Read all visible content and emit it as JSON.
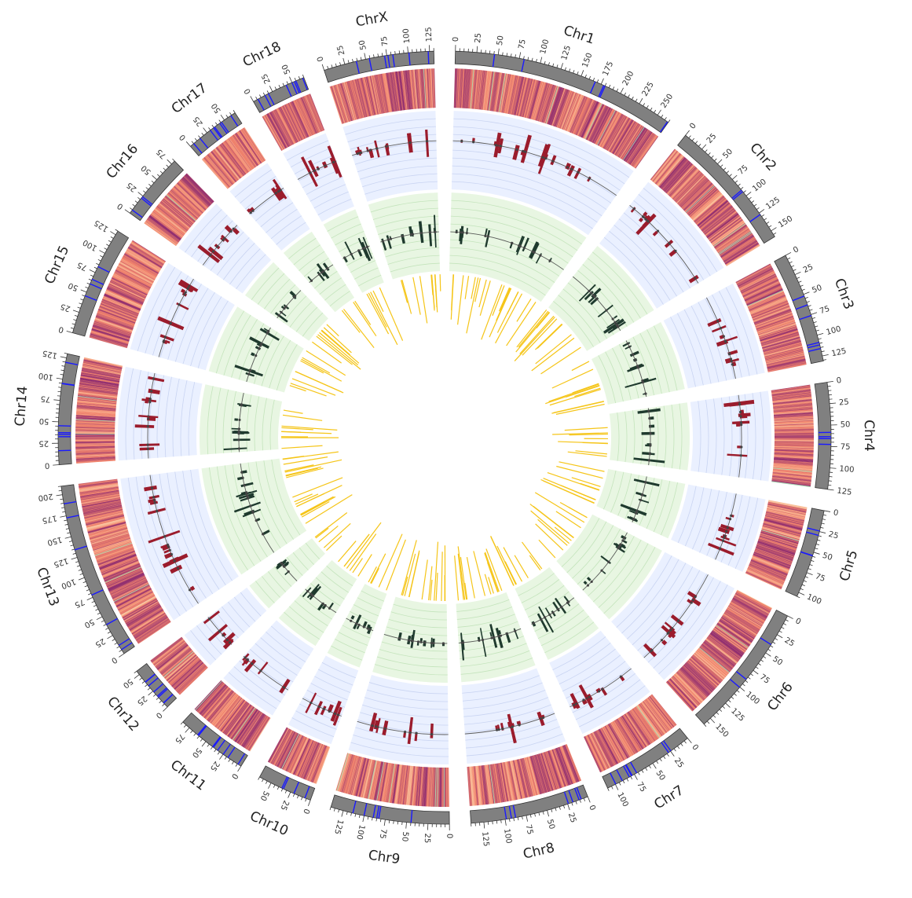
{
  "colors": {
    "ideogram": "#808080",
    "band": "#1a1aff",
    "heat_low": "#fff5c4",
    "heat_mid": "#f2836b",
    "heat_high": "#8e2a6e",
    "heat_cool": "#a8d8b0",
    "track_blue_bg": "#eaf0ff",
    "track_blue_grid": "#c9d4f2",
    "track_green_bg": "#e8f6e2",
    "track_green_grid": "#c4e4bc",
    "line": "#5a5a5a",
    "bar_red": "#9b1c2c",
    "bar_dark": "#1f3a2e",
    "inner_bar": "#f5c518"
  },
  "chart_data": {
    "type": "circos",
    "tick_step": 25,
    "chromosomes": [
      {
        "name": "Chr1",
        "label": "Chr1",
        "length": 265
      },
      {
        "name": "Chr2",
        "label": "Chr2",
        "length": 158
      },
      {
        "name": "Chr3",
        "label": "Chr3",
        "length": 131
      },
      {
        "name": "Chr4",
        "label": "Chr4",
        "length": 125
      },
      {
        "name": "Chr5",
        "label": "Chr5",
        "length": 105
      },
      {
        "name": "Chr6",
        "label": "Chr6",
        "length": 160
      },
      {
        "name": "Chr7",
        "label": "Chr7",
        "length": 110
      },
      {
        "name": "Chr8",
        "label": "Chr8",
        "length": 140
      },
      {
        "name": "Chr9",
        "label": "Chr9",
        "length": 140
      },
      {
        "name": "Chr10",
        "label": "Chr10",
        "length": 65
      },
      {
        "name": "Chr11",
        "label": "Chr11",
        "length": 85
      },
      {
        "name": "Chr12",
        "label": "Chr12",
        "length": 55
      },
      {
        "name": "Chr13",
        "label": "Chr13",
        "length": 210
      },
      {
        "name": "Chr14",
        "label": "Chr14",
        "length": 130
      },
      {
        "name": "Chr15",
        "label": "Chr15",
        "length": 130
      },
      {
        "name": "Chr16",
        "label": "Chr16",
        "length": 80
      },
      {
        "name": "Chr17",
        "label": "Chr17",
        "length": 65
      },
      {
        "name": "Chr18",
        "label": "Chr18",
        "length": 65
      },
      {
        "name": "ChrX",
        "label": "ChrX",
        "length": 130
      }
    ],
    "tracks": [
      "ideogram",
      "heatmap",
      "scatter-blue",
      "scatter-green",
      "bars-yellow"
    ]
  }
}
